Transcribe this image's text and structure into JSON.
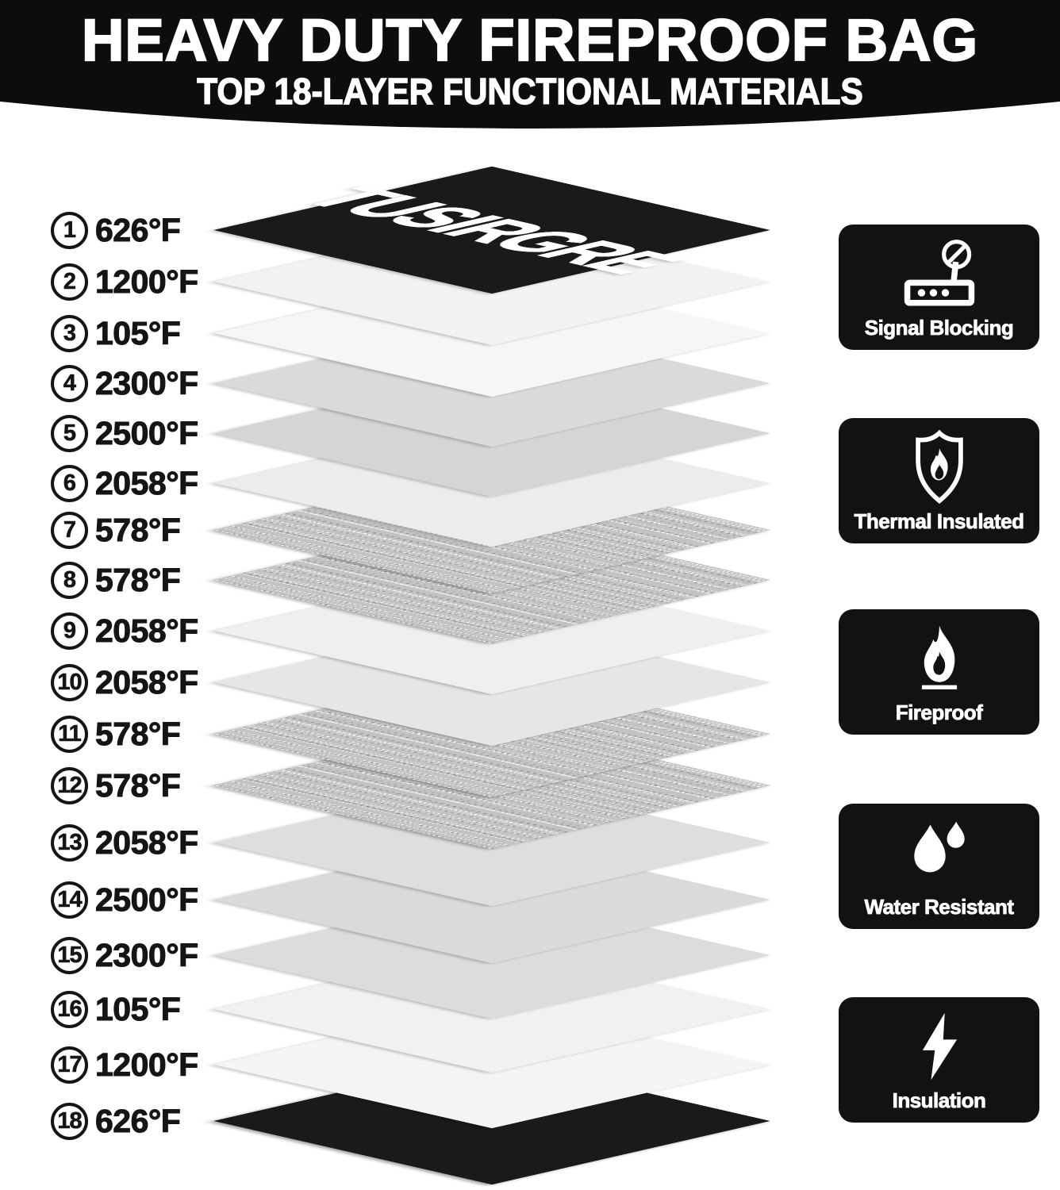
{
  "header": {
    "title": "HEAVY DUTY FIREPROOF BAG",
    "subtitle": "TOP 18-LAYER FUNCTIONAL MATERIALS"
  },
  "brand_logo": "TUSIRGRE",
  "stack": {
    "layers": [
      {
        "num": "1",
        "temp": "626°F",
        "type": "logo"
      },
      {
        "num": "2",
        "temp": "1200°F",
        "type": "plain",
        "color": "#f2f2f2"
      },
      {
        "num": "3",
        "temp": "105°F",
        "type": "plain",
        "color": "#f6f6f6"
      },
      {
        "num": "4",
        "temp": "2300°F",
        "type": "plain",
        "color": "#dadada"
      },
      {
        "num": "5",
        "temp": "2500°F",
        "type": "plain",
        "color": "#d5d5d5"
      },
      {
        "num": "6",
        "temp": "2058°F",
        "type": "plain",
        "color": "#ececec"
      },
      {
        "num": "7",
        "temp": "578°F",
        "type": "speckle"
      },
      {
        "num": "8",
        "temp": "578°F",
        "type": "speckle"
      },
      {
        "num": "9",
        "temp": "2058°F",
        "type": "plain",
        "color": "#efefef"
      },
      {
        "num": "10",
        "temp": "2058°F",
        "type": "plain",
        "color": "#e6e6e6"
      },
      {
        "num": "11",
        "temp": "578°F",
        "type": "speckle"
      },
      {
        "num": "12",
        "temp": "578°F",
        "type": "speckle"
      },
      {
        "num": "13",
        "temp": "2058°F",
        "type": "plain",
        "color": "#dedede"
      },
      {
        "num": "14",
        "temp": "2500°F",
        "type": "plain",
        "color": "#dadada"
      },
      {
        "num": "15",
        "temp": "2300°F",
        "type": "plain",
        "color": "#dcdcdc"
      },
      {
        "num": "16",
        "temp": "105°F",
        "type": "plain",
        "color": "#f1f1f1"
      },
      {
        "num": "17",
        "temp": "1200°F",
        "type": "plain",
        "color": "#f4f4f4"
      },
      {
        "num": "18",
        "temp": "626°F",
        "type": "black"
      }
    ]
  },
  "badges": [
    {
      "label": "Signal Blocking",
      "icon": "signal-blocking-icon"
    },
    {
      "label": "Thermal Insulated",
      "icon": "thermal-insulated-icon"
    },
    {
      "label": "Fireproof",
      "icon": "fireproof-icon"
    },
    {
      "label": "Water Resistant",
      "icon": "water-resistant-icon"
    },
    {
      "label": "Insulation",
      "icon": "insulation-icon"
    }
  ],
  "colors": {
    "header_bg": "#0d0d0d",
    "badge_bg": "#121212",
    "layer_black": "#1a1a1a",
    "label_text": "#151515"
  }
}
